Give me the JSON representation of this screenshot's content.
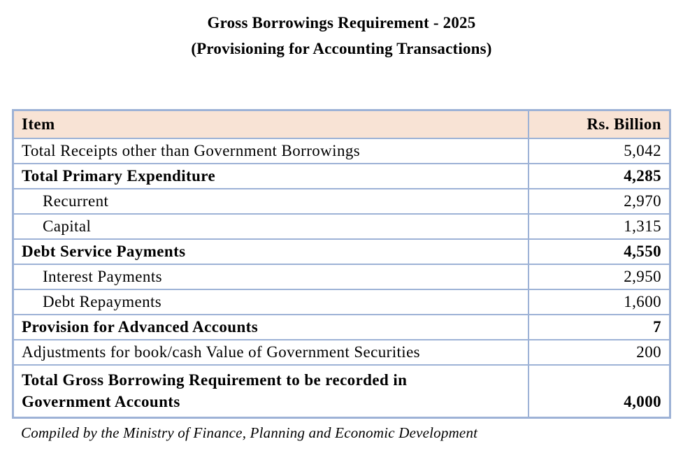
{
  "title": {
    "line1": "Gross Borrowings Requirement - 2025",
    "line2": "(Provisioning for Accounting Transactions)"
  },
  "table": {
    "columns": [
      "Item",
      "Rs. Billion"
    ],
    "rows": [
      {
        "item": "Total Receipts other than Government Borrowings",
        "value": "5,042"
      },
      {
        "item": "Total Primary Expenditure",
        "value": "4,285"
      },
      {
        "item": "Recurrent",
        "value": "2,970"
      },
      {
        "item": "Capital",
        "value": "1,315"
      },
      {
        "item": "Debt Service Payments",
        "value": "4,550"
      },
      {
        "item": "Interest Payments",
        "value": "2,950"
      },
      {
        "item": "Debt Repayments",
        "value": "1,600"
      },
      {
        "item": "Provision for Advanced Accounts",
        "value": "7"
      },
      {
        "item": "Adjustments for book/cash Value of Government Securities",
        "value": "200"
      },
      {
        "item_line1": "Total Gross Borrowing Requirement to be recorded in",
        "item_line2": "Government Accounts",
        "value": "4,000"
      }
    ]
  },
  "footer": {
    "note": "Compiled by the Ministry of Finance, Planning and Economic Development"
  },
  "colors": {
    "header_bg": "#F8E3D5",
    "border": "#9DB2D6",
    "text": "#000000"
  }
}
